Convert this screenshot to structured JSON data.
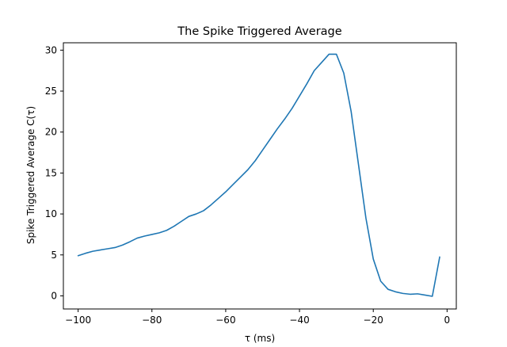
{
  "chart_data": {
    "type": "line",
    "title": "The Spike Triggered Average",
    "xlabel": "τ (ms)",
    "ylabel": "Spike Triggered Average C(τ)",
    "xlim": [
      -104,
      2.5
    ],
    "ylim": [
      -1.6,
      30.9
    ],
    "xticks": [
      -100,
      -80,
      -60,
      -40,
      -20,
      0
    ],
    "yticks": [
      0,
      5,
      10,
      15,
      20,
      25,
      30
    ],
    "xtick_labels": [
      "−100",
      "−80",
      "−60",
      "−40",
      "−20",
      "0"
    ],
    "ytick_labels": [
      "0",
      "5",
      "10",
      "15",
      "20",
      "25",
      "30"
    ],
    "grid": false,
    "colors": {
      "line": "#1f77b4"
    },
    "series": [
      {
        "x": [
          -100,
          -98,
          -96,
          -94,
          -92,
          -90,
          -88,
          -86,
          -84,
          -82,
          -80,
          -78,
          -76,
          -74,
          -72,
          -70,
          -68,
          -66,
          -64,
          -62,
          -60,
          -58,
          -56,
          -54,
          -52,
          -50,
          -48,
          -46,
          -44,
          -42,
          -40,
          -38,
          -36,
          -34,
          -32,
          -30,
          -28,
          -26,
          -24,
          -22,
          -20,
          -18,
          -16,
          -14,
          -12,
          -10,
          -8,
          -6,
          -4,
          -2
        ],
        "values": [
          4.9,
          5.2,
          5.45,
          5.6,
          5.75,
          5.9,
          6.2,
          6.6,
          7.05,
          7.3,
          7.5,
          7.7,
          8.0,
          8.5,
          9.1,
          9.7,
          10.0,
          10.4,
          11.1,
          11.9,
          12.7,
          13.6,
          14.5,
          15.4,
          16.5,
          17.8,
          19.1,
          20.4,
          21.6,
          22.9,
          24.4,
          25.9,
          27.5,
          28.5,
          29.5,
          29.5,
          27.2,
          22.5,
          16.0,
          9.5,
          4.5,
          1.8,
          0.8,
          0.5,
          0.3,
          0.2,
          0.25,
          0.1,
          -0.05,
          4.75
        ]
      }
    ]
  }
}
